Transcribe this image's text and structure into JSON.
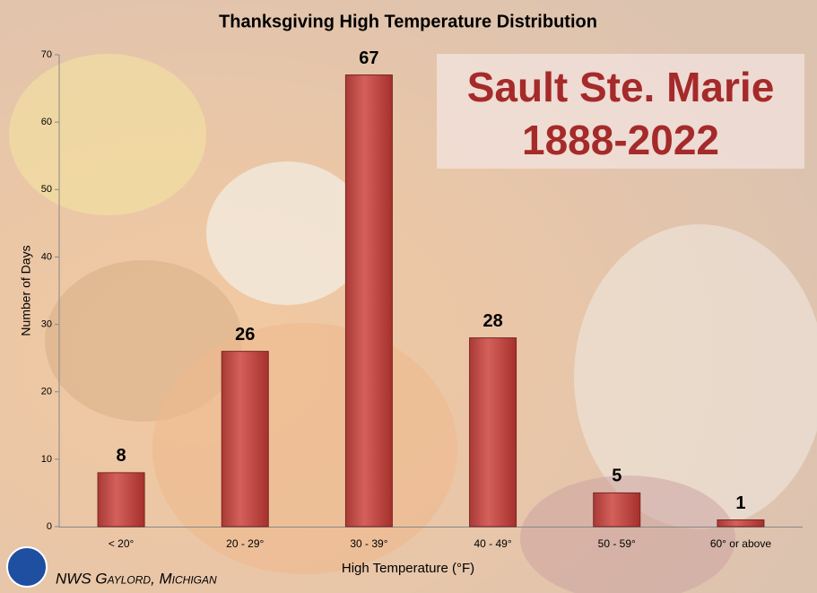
{
  "chart_data": {
    "type": "bar",
    "title": "Thanksgiving High Temperature Distribution",
    "annotations": [
      "Sault Ste. Marie",
      "1888-2022"
    ],
    "x_label": "High Temperature (°F)",
    "y_label": "Number of Days",
    "categories": [
      "< 20°",
      "20 - 29°",
      "30 - 39°",
      "40 - 49°",
      "50 - 59°",
      "60° or above"
    ],
    "values": [
      8,
      26,
      67,
      28,
      5,
      1
    ],
    "color": "#c0504d",
    "ylim": [
      0,
      70
    ],
    "yticks": [
      0,
      10,
      20,
      30,
      40,
      50,
      60,
      70
    ],
    "grid": false,
    "footer": "NWS Gaylord, Michigan"
  }
}
